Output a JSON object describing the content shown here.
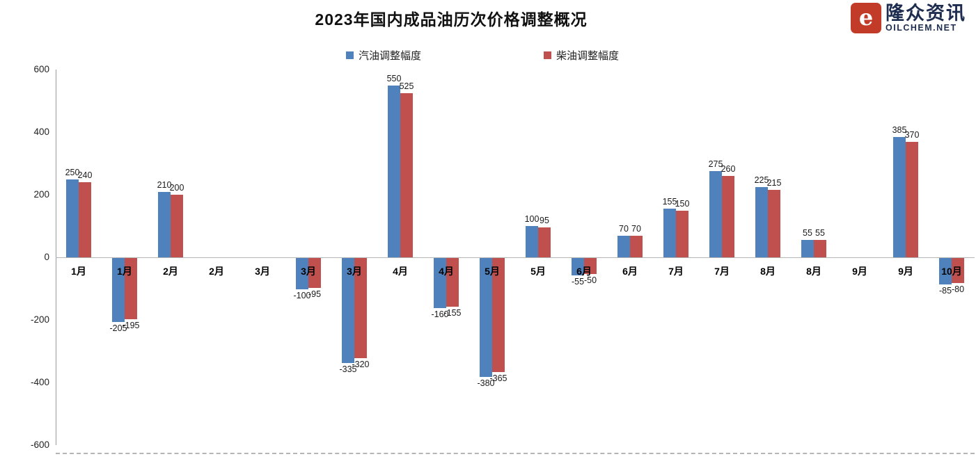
{
  "header": {
    "logo": {
      "icon_letter": "e",
      "name_cn": "隆众资讯",
      "domain": "OILCHEM.NET",
      "brand_red": "#C23A28",
      "brand_navy": "#1E2C50"
    }
  },
  "chart_data": {
    "type": "bar",
    "title": "2023年国内成品油历次价格调整概况",
    "categories": [
      "1月",
      "1月",
      "2月",
      "2月",
      "3月",
      "3月",
      "3月",
      "4月",
      "4月",
      "5月",
      "5月",
      "6月",
      "6月",
      "7月",
      "7月",
      "8月",
      "8月",
      "9月",
      "9月",
      "10月"
    ],
    "series": [
      {
        "name": "汽油调整幅度",
        "color": "#4F81BD",
        "values": [
          250,
          -205,
          210,
          null,
          null,
          -100,
          -335,
          550,
          -160,
          -380,
          100,
          -55,
          70,
          155,
          275,
          225,
          55,
          null,
          385,
          -85
        ]
      },
      {
        "name": "柴油调整幅度",
        "color": "#C0504D",
        "values": [
          240,
          -195,
          200,
          null,
          null,
          -95,
          -320,
          525,
          -155,
          -365,
          95,
          -50,
          70,
          150,
          260,
          215,
          55,
          null,
          370,
          -80
        ]
      }
    ],
    "ylim": [
      -600,
      600
    ],
    "yticks": [
      600,
      400,
      200,
      0,
      -200,
      -400,
      -600
    ],
    "grid": false,
    "legend_position": "top",
    "axis_color": "#9a9a9a"
  }
}
